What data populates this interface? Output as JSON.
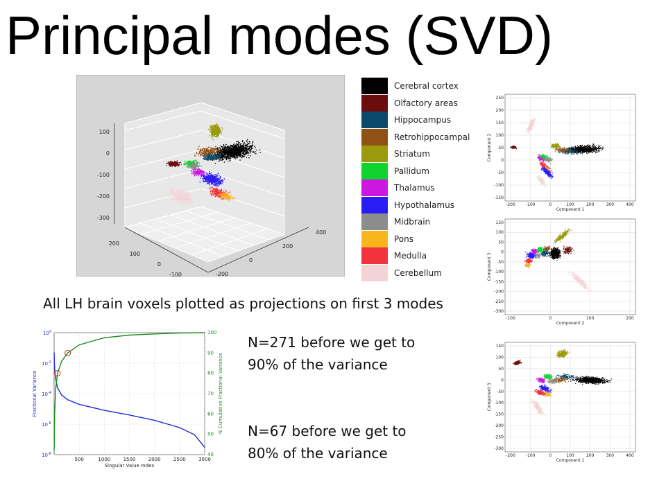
{
  "title": "Principal modes (SVD)",
  "legend": [
    {
      "label": "Cerebral cortex",
      "color": "#000000"
    },
    {
      "label": "Olfactory areas",
      "color": "#6b0d0d"
    },
    {
      "label": "Hippocampus",
      "color": "#0b4a6b"
    },
    {
      "label": "Retrohippocampal",
      "color": "#8f5214"
    },
    {
      "label": "Striatum",
      "color": "#9a9a0c"
    },
    {
      "label": "Pallidum",
      "color": "#0fd32e"
    },
    {
      "label": "Thalamus",
      "color": "#cc17e0"
    },
    {
      "label": "Hypothalamus",
      "color": "#2a1cf5"
    },
    {
      "label": "Midbrain",
      "color": "#8c8c8c"
    },
    {
      "label": "Pons",
      "color": "#f9b51c"
    },
    {
      "label": "Medulla",
      "color": "#f2333b"
    },
    {
      "label": "Cerebellum",
      "color": "#f4d3d6"
    }
  ],
  "caption": "All LH brain voxels plotted as projections on first 3 modes",
  "notes": {
    "n90": "N=271 before we get to 90% of the variance",
    "n80": "N=67 before we get to 80% of the variance"
  },
  "plot3d": {
    "z_ticks": [
      "100",
      "0",
      "-100",
      "-200",
      "-300"
    ],
    "x_ticks": [
      "200",
      "100",
      "0",
      "-100"
    ],
    "y_ticks": [
      "400",
      "200",
      "0",
      "-200"
    ]
  },
  "scatter12": {
    "xlabel": "Component 1",
    "ylabel": "Component 2",
    "x_ticks": [
      "-200",
      "-100",
      "0",
      "100",
      "200",
      "300",
      "400"
    ],
    "y_ticks": [
      "250",
      "200",
      "150",
      "100",
      "50",
      "0",
      "-50",
      "-100",
      "-150"
    ]
  },
  "scatter23": {
    "xlabel": "Component 2",
    "ylabel": "Component 3",
    "x_ticks": [
      "-100",
      "0",
      "100",
      "200"
    ],
    "y_ticks": [
      "150",
      "100",
      "50",
      "0",
      "-50",
      "-100",
      "-150",
      "-200",
      "-250",
      "-300"
    ]
  },
  "scatter13": {
    "xlabel": "Component 1",
    "ylabel": "Component 3",
    "x_ticks": [
      "-200",
      "-100",
      "0",
      "100",
      "200",
      "300",
      "400"
    ],
    "y_ticks": [
      "150",
      "100",
      "50",
      "0",
      "-50",
      "-100",
      "-150",
      "-200",
      "-250",
      "-300"
    ]
  },
  "chart_data": {
    "type": "line",
    "xlabel": "Singular Value Index",
    "ylabel": "Fractional Variance",
    "ylabel_right": "% Cumulative Fractional Variance",
    "xlim": [
      0,
      3000
    ],
    "ylim": [
      1e-08,
      1
    ],
    "ylim_right": [
      40,
      100
    ],
    "yscale": "log",
    "x_ticks": [
      "500",
      "1000",
      "1500",
      "2000",
      "2500",
      "3000"
    ],
    "y_ticks_left": [
      "10^0",
      "10^-2",
      "10^-4",
      "10^-6",
      "10^-8"
    ],
    "y_ticks_right": [
      "100",
      "90",
      "80",
      "70",
      "60",
      "50",
      "40"
    ],
    "grid": true,
    "series": [
      {
        "color": "#1f2bd6",
        "axis": "left",
        "x": [
          1,
          5,
          15,
          30,
          67,
          150,
          271,
          500,
          1000,
          1500,
          2000,
          2500,
          2800,
          3000
        ],
        "y": [
          0.05,
          0.01,
          0.003,
          0.001,
          0.00025,
          8e-05,
          4e-05,
          2e-05,
          8e-06,
          4e-06,
          1.8e-06,
          6e-07,
          2e-07,
          3e-08
        ]
      },
      {
        "color": "#1a8a1a",
        "axis": "right",
        "x": [
          1,
          10,
          30,
          67,
          150,
          271,
          500,
          1000,
          1500,
          2000,
          2500,
          3000
        ],
        "y": [
          42,
          60,
          72,
          80,
          86,
          90,
          94,
          97.5,
          98.8,
          99.4,
          99.8,
          100
        ]
      }
    ],
    "markers": [
      {
        "x": 67,
        "y": 80
      },
      {
        "x": 271,
        "y": 90
      }
    ]
  }
}
